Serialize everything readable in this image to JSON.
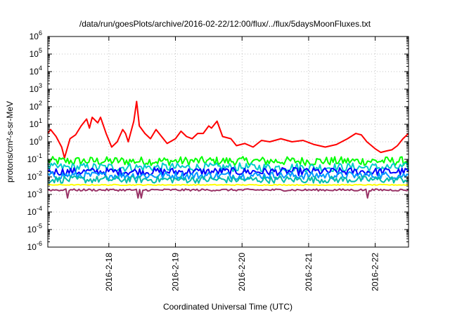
{
  "chart_data": {
    "type": "line",
    "title": "/data/run/goesPlots/archive/2016-02-22/12:00/flux/../flux/5daysMoonFluxes.txt",
    "xlabel": "Coordinated Universal Time (UTC)",
    "ylabel": "protons/cm²-s-sr-MeV",
    "yscale": "log",
    "ylim": [
      1e-06,
      1000000.0
    ],
    "xlim": [
      "2016-02-17T02:00",
      "2016-02-22T12:00"
    ],
    "x_ticks": [
      "2016-2-18",
      "2016-2-19",
      "2016-2-20",
      "2016-2-21",
      "2016-2-22"
    ],
    "y_ticks": [
      {
        "base": "10",
        "exp": "-6"
      },
      {
        "base": "10",
        "exp": "-5"
      },
      {
        "base": "10",
        "exp": "-4"
      },
      {
        "base": "10",
        "exp": "-3"
      },
      {
        "base": "10",
        "exp": "-2"
      },
      {
        "base": "10",
        "exp": "-1"
      },
      {
        "base": "10",
        "exp": "0"
      },
      {
        "base": "10",
        "exp": "1"
      },
      {
        "base": "10",
        "exp": "2"
      },
      {
        "base": "10",
        "exp": "3"
      },
      {
        "base": "10",
        "exp": "4"
      },
      {
        "base": "10",
        "exp": "5"
      },
      {
        "base": "10",
        "exp": "6"
      }
    ],
    "grid": true,
    "legend": "none",
    "series": [
      {
        "color": "#ff0000",
        "values": [
          [
            "2016-02-17T02:00",
            3
          ],
          [
            "2016-02-17T03:00",
            5
          ],
          [
            "2016-02-17T05:00",
            2
          ],
          [
            "2016-02-17T07:00",
            0.5
          ],
          [
            "2016-02-17T08:00",
            0.12
          ],
          [
            "2016-02-17T10:00",
            1.5
          ],
          [
            "2016-02-17T12:00",
            2.5
          ],
          [
            "2016-02-17T14:00",
            8
          ],
          [
            "2016-02-17T16:00",
            20
          ],
          [
            "2016-02-17T17:00",
            6
          ],
          [
            "2016-02-17T18:00",
            25
          ],
          [
            "2016-02-17T20:00",
            12
          ],
          [
            "2016-02-17T21:00",
            25
          ],
          [
            "2016-02-17T23:00",
            3
          ],
          [
            "2016-02-18T01:00",
            0.5
          ],
          [
            "2016-02-18T03:00",
            1
          ],
          [
            "2016-02-18T05:00",
            5
          ],
          [
            "2016-02-18T06:00",
            3
          ],
          [
            "2016-02-18T07:00",
            1
          ],
          [
            "2016-02-18T09:00",
            15
          ],
          [
            "2016-02-18T10:00",
            200
          ],
          [
            "2016-02-18T11:00",
            8
          ],
          [
            "2016-02-18T13:00",
            3
          ],
          [
            "2016-02-18T15:00",
            1.5
          ],
          [
            "2016-02-18T17:00",
            5
          ],
          [
            "2016-02-18T19:00",
            2
          ],
          [
            "2016-02-18T21:00",
            0.8
          ],
          [
            "2016-02-19T00:00",
            1.5
          ],
          [
            "2016-02-19T02:00",
            4
          ],
          [
            "2016-02-19T04:00",
            2
          ],
          [
            "2016-02-19T06:00",
            1.5
          ],
          [
            "2016-02-19T08:00",
            3
          ],
          [
            "2016-02-19T10:00",
            3
          ],
          [
            "2016-02-19T12:00",
            8
          ],
          [
            "2016-02-19T13:00",
            6
          ],
          [
            "2016-02-19T15:00",
            15
          ],
          [
            "2016-02-19T17:00",
            2
          ],
          [
            "2016-02-19T20:00",
            1.5
          ],
          [
            "2016-02-19T22:00",
            0.6
          ],
          [
            "2016-02-20T01:00",
            0.8
          ],
          [
            "2016-02-20T04:00",
            0.5
          ],
          [
            "2016-02-20T07:00",
            1.2
          ],
          [
            "2016-02-20T10:00",
            1
          ],
          [
            "2016-02-20T14:00",
            1.5
          ],
          [
            "2016-02-20T18:00",
            1
          ],
          [
            "2016-02-20T22:00",
            1.2
          ],
          [
            "2016-02-21T02:00",
            0.7
          ],
          [
            "2016-02-21T06:00",
            0.5
          ],
          [
            "2016-02-21T10:00",
            0.7
          ],
          [
            "2016-02-21T14:00",
            1.5
          ],
          [
            "2016-02-21T17:00",
            3
          ],
          [
            "2016-02-21T19:00",
            2.5
          ],
          [
            "2016-02-21T21:00",
            1
          ],
          [
            "2016-02-22T00:00",
            0.4
          ],
          [
            "2016-02-22T02:00",
            0.25
          ],
          [
            "2016-02-22T04:00",
            0.3
          ],
          [
            "2016-02-22T06:00",
            0.35
          ],
          [
            "2016-02-22T08:00",
            0.6
          ],
          [
            "2016-02-22T10:00",
            1.5
          ],
          [
            "2016-02-22T12:00",
            3
          ]
        ]
      },
      {
        "color": "#00ff00",
        "base": 0.08,
        "noise": 0.5
      },
      {
        "color": "#00cccc",
        "base": 0.035,
        "noise": 0.5
      },
      {
        "color": "#0000ff",
        "base": 0.02,
        "noise": 0.45
      },
      {
        "color": "#0099ff",
        "base": 0.012,
        "noise": 0.45
      },
      {
        "color": "#00bbaa",
        "base": 0.007,
        "noise": 0.4
      },
      {
        "color": "#ffff00",
        "base": 0.0035,
        "noise": 0.05
      },
      {
        "color": "#993366",
        "base": 0.0018,
        "noise": 0.12
      }
    ]
  }
}
